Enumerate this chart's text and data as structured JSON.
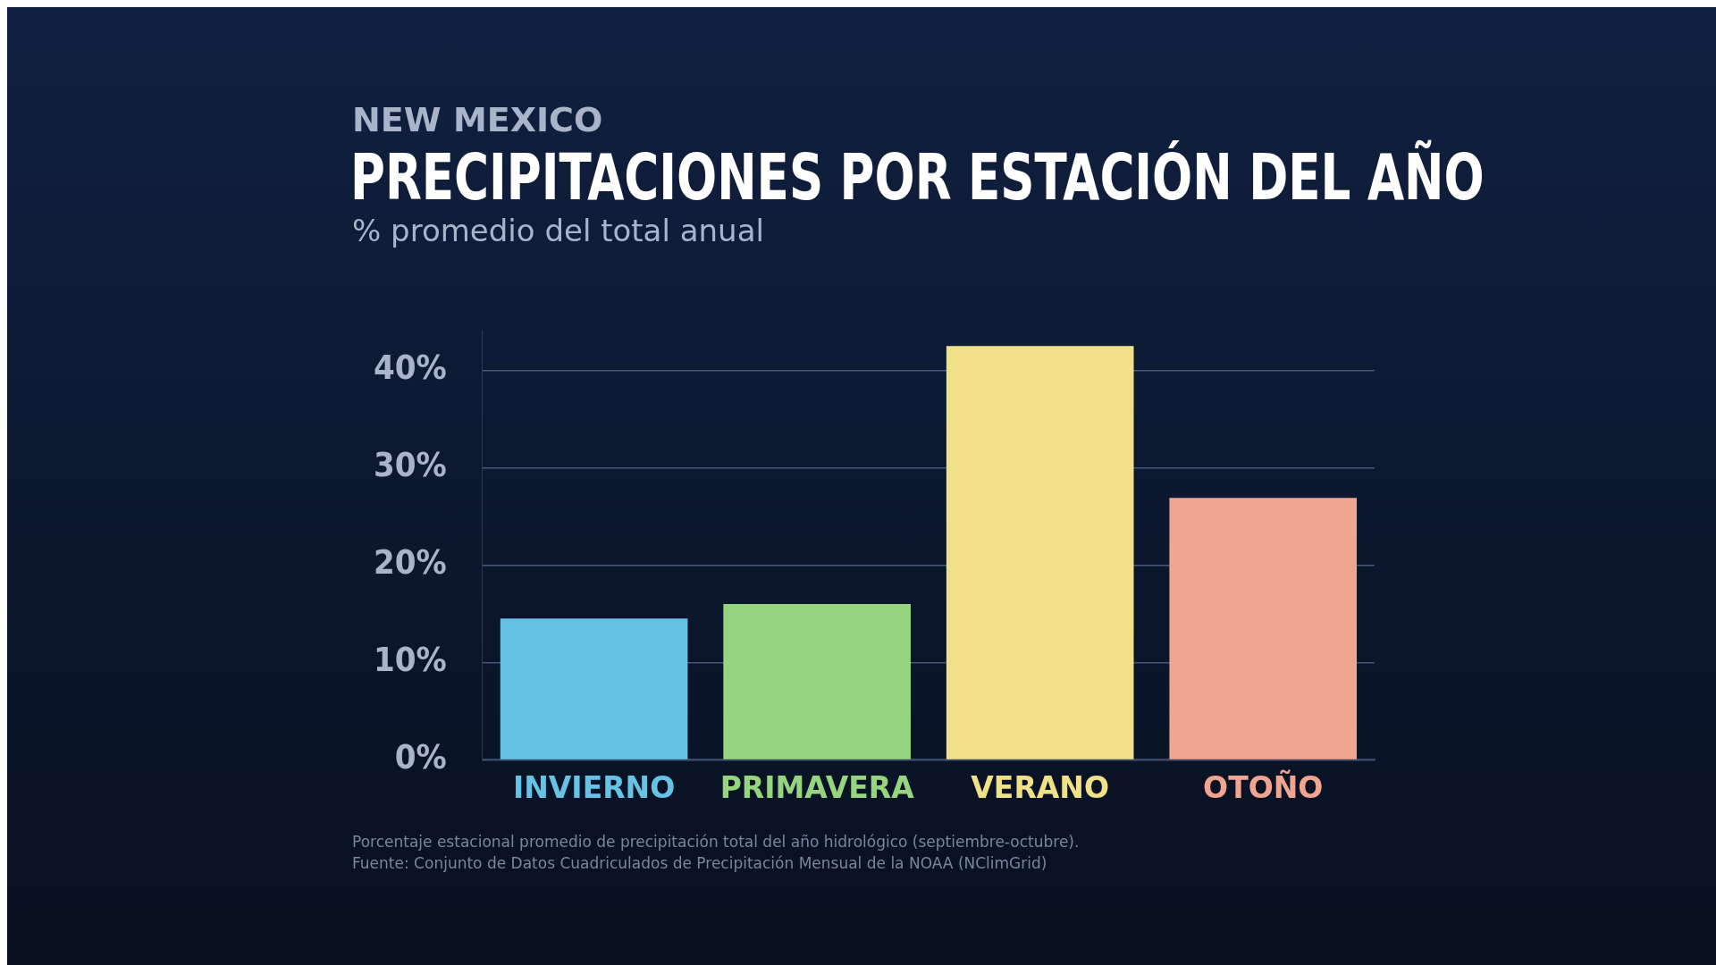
{
  "chart_data": {
    "type": "bar",
    "title": "PRECIPITACIONES POR ESTACIÓN DEL AÑO",
    "subtitle": "NEW MEXICO",
    "ylabel": "% promedio del total anual",
    "categories": [
      "INVIERNO",
      "PRIMAVERA",
      "VERANO",
      "OTOÑO"
    ],
    "values": [
      14.5,
      16,
      42.5,
      26.9
    ],
    "colors": [
      "#66c3e5",
      "#96d57f",
      "#f0e088",
      "#efa590"
    ],
    "ylim": [
      0,
      44
    ],
    "yticks": [
      {
        "value": 0,
        "label": "0%"
      },
      {
        "value": 10,
        "label": "10%"
      },
      {
        "value": 20,
        "label": "20%"
      },
      {
        "value": 30,
        "label": "30%"
      },
      {
        "value": 40,
        "label": "40%"
      }
    ],
    "grid": "y",
    "legend": false,
    "annotations": [
      "Porcentaje estacional promedio de precipitación total del año hidrológico (septiembre-octubre).",
      "Fuente: Conjunto de Datos Cuadriculados de Precipitación Mensual de la NOAA (NClimGrid)"
    ]
  }
}
